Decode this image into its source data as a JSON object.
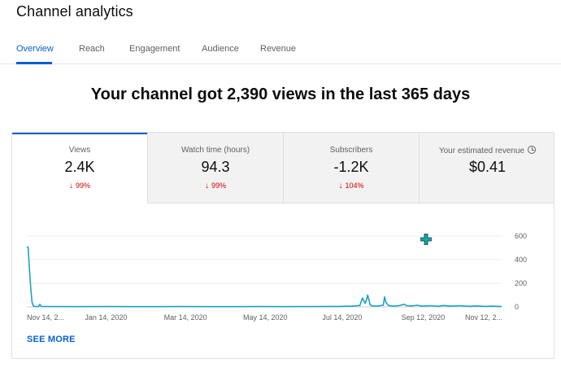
{
  "header": {
    "title": "Channel analytics"
  },
  "tabs": [
    {
      "label": "Overview",
      "active": true
    },
    {
      "label": "Reach"
    },
    {
      "label": "Engagement"
    },
    {
      "label": "Audience"
    },
    {
      "label": "Revenue"
    }
  ],
  "headline": "Your channel got 2,390 views in the last 365 days",
  "metrics": [
    {
      "label": "Views",
      "value": "2.4K",
      "delta": "99%",
      "active": true
    },
    {
      "label": "Watch time (hours)",
      "value": "94.3",
      "delta": "99%"
    },
    {
      "label": "Subscribers",
      "value": "-1.2K",
      "delta": "104%"
    },
    {
      "label": "Your estimated revenue",
      "value": "$0.41"
    }
  ],
  "colors": {
    "accent": "#065fd4",
    "series": "#1aa3c4",
    "negative": "#cc0000"
  },
  "see_more": "SEE MORE",
  "chart_data": {
    "type": "line",
    "x_tick_labels": [
      "Nov 14, 2...",
      "Jan 14, 2020",
      "Mar 14, 2020",
      "May 14, 2020",
      "Jul 14, 2020",
      "Sep 12, 2020",
      "Nov 12, 2..."
    ],
    "y_ticks": [
      0,
      200,
      400,
      600
    ],
    "ylim": [
      0,
      600
    ],
    "x_range_days": [
      0,
      365
    ],
    "series": [
      {
        "points": [
          [
            0,
            510
          ],
          [
            1,
            505
          ],
          [
            2,
            320
          ],
          [
            3,
            160
          ],
          [
            4,
            40
          ],
          [
            5,
            8
          ],
          [
            6,
            4
          ],
          [
            9,
            3
          ],
          [
            10,
            22
          ],
          [
            11,
            4
          ],
          [
            20,
            3
          ],
          [
            40,
            2
          ],
          [
            60,
            3
          ],
          [
            80,
            2
          ],
          [
            100,
            2
          ],
          [
            120,
            3
          ],
          [
            140,
            2
          ],
          [
            160,
            2
          ],
          [
            180,
            3
          ],
          [
            200,
            2
          ],
          [
            220,
            3
          ],
          [
            240,
            4
          ],
          [
            250,
            6
          ],
          [
            256,
            12
          ],
          [
            258,
            75
          ],
          [
            260,
            30
          ],
          [
            261,
            55
          ],
          [
            262,
            100
          ],
          [
            264,
            15
          ],
          [
            266,
            6
          ],
          [
            270,
            8
          ],
          [
            274,
            14
          ],
          [
            275,
            85
          ],
          [
            276,
            40
          ],
          [
            278,
            12
          ],
          [
            282,
            6
          ],
          [
            286,
            10
          ],
          [
            290,
            22
          ],
          [
            292,
            10
          ],
          [
            296,
            8
          ],
          [
            300,
            14
          ],
          [
            304,
            6
          ],
          [
            310,
            10
          ],
          [
            316,
            5
          ],
          [
            320,
            12
          ],
          [
            326,
            6
          ],
          [
            332,
            10
          ],
          [
            340,
            5
          ],
          [
            346,
            8
          ],
          [
            352,
            4
          ],
          [
            358,
            6
          ],
          [
            365,
            3
          ]
        ]
      }
    ]
  }
}
